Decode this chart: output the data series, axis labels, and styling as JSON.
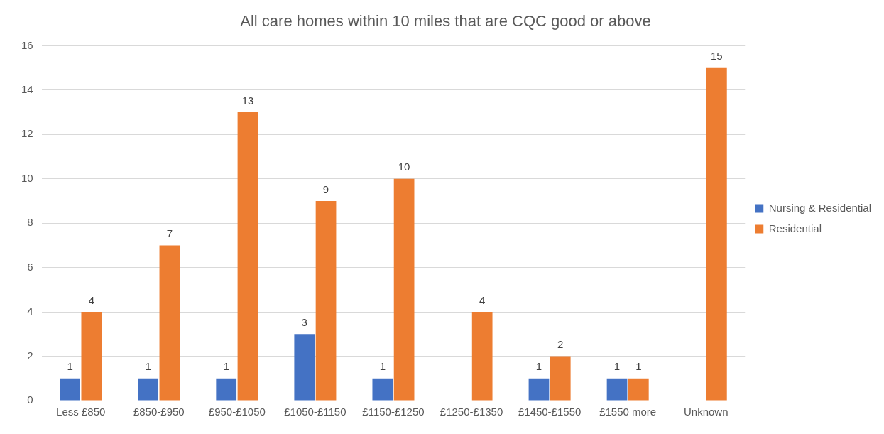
{
  "chart_data": {
    "type": "bar",
    "title": "All care homes within 10 miles that are CQC good or above",
    "categories": [
      "Less £850",
      "£850-£950",
      "£950-£1050",
      "£1050-£1150",
      "£1150-£1250",
      "£1250-£1350",
      "£1450-£1550",
      "£1550 more",
      "Unknown"
    ],
    "series": [
      {
        "name": "Nursing & Residential",
        "color": "#4472c4",
        "values": [
          1,
          1,
          1,
          3,
          1,
          null,
          1,
          1,
          null
        ]
      },
      {
        "name": "Residential",
        "color": "#ed7d31",
        "values": [
          4,
          7,
          13,
          9,
          10,
          4,
          2,
          1,
          15
        ]
      }
    ],
    "ylim": [
      0,
      16
    ],
    "yticks": [
      0,
      2,
      4,
      6,
      8,
      10,
      12,
      14,
      16
    ],
    "grid": "y",
    "legend": "right",
    "data_labels": true
  }
}
